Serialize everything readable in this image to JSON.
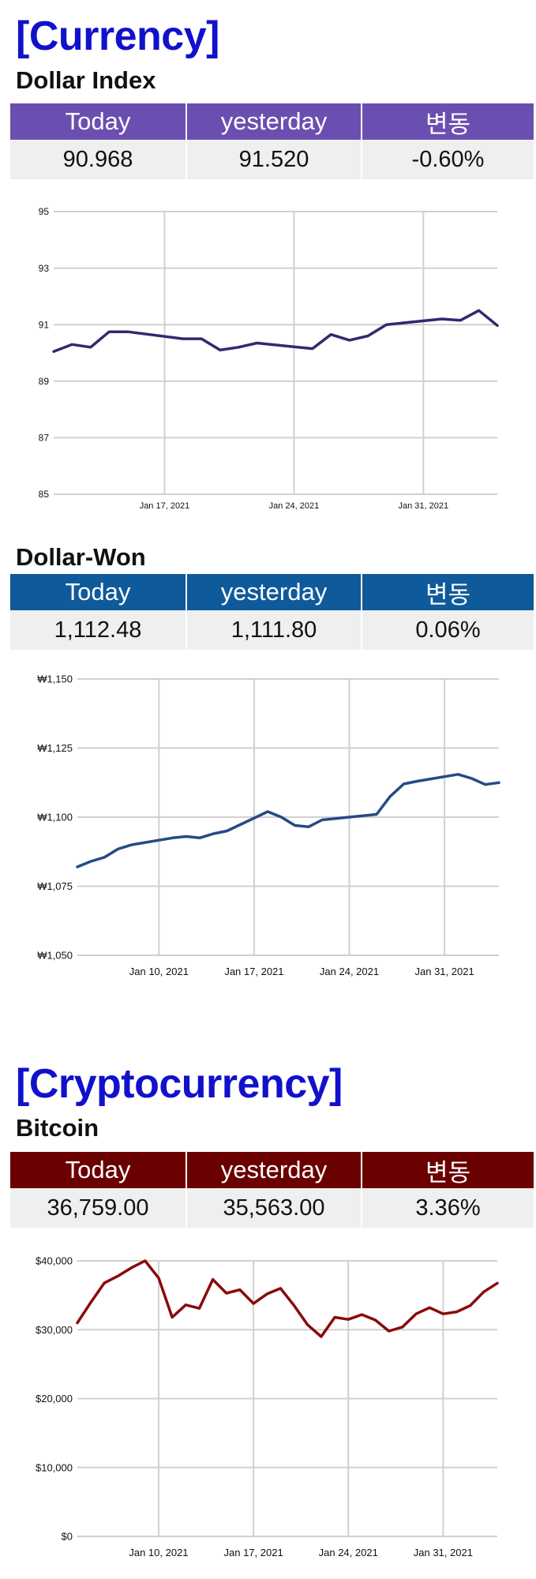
{
  "currency": {
    "heading": "[Currency]",
    "dollar_index": {
      "title": "Dollar Index",
      "headers": [
        "Today",
        "yesterday",
        "변동"
      ],
      "today": "90.968",
      "yesterday": "91.520",
      "change": "-0.60%"
    },
    "dollar_won": {
      "title": "Dollar-Won",
      "headers": [
        "Today",
        "yesterday",
        "변동"
      ],
      "today": "1,112.48",
      "yesterday": "1,111.80",
      "change": "0.06%"
    }
  },
  "crypto": {
    "heading": "[Cryptocurrency]",
    "bitcoin": {
      "title": "Bitcoin",
      "headers": [
        "Today",
        "yesterday",
        "변동"
      ],
      "today": "36,759.00",
      "yesterday": "35,563.00",
      "change": "3.36%"
    }
  },
  "colors": {
    "heading": "#1111cc",
    "dollar_index_header": "#6a4fb0",
    "dollar_index_line": "#3b2472",
    "dollar_won_header": "#0f5a9a",
    "dollar_won_line": "#254b85",
    "bitcoin_header": "#6a0000",
    "bitcoin_line": "#8b0a0a",
    "grid": "#d0d0d0"
  },
  "chart_data": [
    {
      "id": "dollar-index",
      "type": "line",
      "title": "",
      "grid": true,
      "ylim": [
        85,
        95
      ],
      "yticks": [
        85,
        87,
        89,
        91,
        93,
        95
      ],
      "ytick_labels": [
        "85",
        "87",
        "89",
        "91",
        "93",
        "95"
      ],
      "xlim": [
        "2021-01-11",
        "2021-02-04"
      ],
      "xticks": [
        "2021-01-17",
        "2021-01-24",
        "2021-01-31"
      ],
      "xtick_labels": [
        "Jan 17, 2021",
        "Jan 24, 2021",
        "Jan 31, 2021"
      ],
      "series": [
        {
          "x": [
            "2021-01-11",
            "2021-01-12",
            "2021-01-13",
            "2021-01-14",
            "2021-01-15",
            "2021-01-18",
            "2021-01-19",
            "2021-01-20",
            "2021-01-21",
            "2021-01-22",
            "2021-01-25",
            "2021-01-26",
            "2021-01-27",
            "2021-01-28",
            "2021-01-29",
            "2021-02-01",
            "2021-02-02",
            "2021-02-03",
            "2021-02-04"
          ],
          "y": [
            90.05,
            90.3,
            90.2,
            90.75,
            90.75,
            90.5,
            90.5,
            90.1,
            90.2,
            90.35,
            90.15,
            90.65,
            90.45,
            90.6,
            91.0,
            91.2,
            91.15,
            91.5,
            90.97
          ]
        }
      ]
    },
    {
      "id": "dollar-won",
      "type": "line",
      "title": "",
      "grid": true,
      "ylim": [
        1050,
        1150
      ],
      "yticks": [
        1050,
        1075,
        1100,
        1125,
        1150
      ],
      "ytick_labels": [
        "₩1,050",
        "₩1,075",
        "₩1,100",
        "₩1,125",
        "₩1,150"
      ],
      "xlim": [
        "2021-01-04",
        "2021-02-04"
      ],
      "xticks": [
        "2021-01-10",
        "2021-01-17",
        "2021-01-24",
        "2021-01-31"
      ],
      "xtick_labels": [
        "Jan 10, 2021",
        "Jan 17, 2021",
        "Jan 24, 2021",
        "Jan 31, 2021"
      ],
      "series": [
        {
          "x": [
            "2021-01-04",
            "2021-01-05",
            "2021-01-06",
            "2021-01-07",
            "2021-01-08",
            "2021-01-11",
            "2021-01-12",
            "2021-01-13",
            "2021-01-14",
            "2021-01-15",
            "2021-01-18",
            "2021-01-19",
            "2021-01-20",
            "2021-01-21",
            "2021-01-22",
            "2021-01-25",
            "2021-01-26",
            "2021-01-27",
            "2021-01-28",
            "2021-01-29",
            "2021-02-01",
            "2021-02-02",
            "2021-02-03",
            "2021-02-04"
          ],
          "y": [
            1082,
            1084,
            1085.5,
            1088.5,
            1090,
            1092.5,
            1093,
            1092.5,
            1094,
            1095,
            1102,
            1100,
            1097,
            1096.5,
            1099,
            1100.5,
            1101,
            1107.5,
            1112,
            1113,
            1115.5,
            1114,
            1111.8,
            1112.5
          ]
        }
      ]
    },
    {
      "id": "bitcoin",
      "type": "line",
      "title": "",
      "grid": true,
      "ylim": [
        0,
        40000
      ],
      "yticks": [
        0,
        10000,
        20000,
        30000,
        40000
      ],
      "ytick_labels": [
        "$0",
        "$10,000",
        "$20,000",
        "$30,000",
        "$40,000"
      ],
      "xlim": [
        "2021-01-04",
        "2021-02-04"
      ],
      "xticks": [
        "2021-01-10",
        "2021-01-17",
        "2021-01-24",
        "2021-01-31"
      ],
      "xtick_labels": [
        "Jan 10, 2021",
        "Jan 17, 2021",
        "Jan 24, 2021",
        "Jan 31, 2021"
      ],
      "series": [
        {
          "x": [
            "2021-01-04",
            "2021-01-05",
            "2021-01-06",
            "2021-01-07",
            "2021-01-08",
            "2021-01-09",
            "2021-01-10",
            "2021-01-11",
            "2021-01-12",
            "2021-01-13",
            "2021-01-14",
            "2021-01-15",
            "2021-01-16",
            "2021-01-17",
            "2021-01-18",
            "2021-01-19",
            "2021-01-20",
            "2021-01-21",
            "2021-01-22",
            "2021-01-23",
            "2021-01-24",
            "2021-01-25",
            "2021-01-26",
            "2021-01-27",
            "2021-01-28",
            "2021-01-29",
            "2021-01-30",
            "2021-01-31",
            "2021-02-01",
            "2021-02-02",
            "2021-02-03",
            "2021-02-04"
          ],
          "y": [
            31000,
            34000,
            36800,
            37800,
            39000,
            40000,
            37500,
            31800,
            33600,
            33100,
            37300,
            35300,
            35800,
            33800,
            35200,
            36000,
            33500,
            30700,
            29000,
            31800,
            31500,
            32200,
            31400,
            29800,
            30400,
            32300,
            33200,
            32300,
            32600,
            33500,
            35500,
            36759
          ]
        }
      ]
    }
  ]
}
